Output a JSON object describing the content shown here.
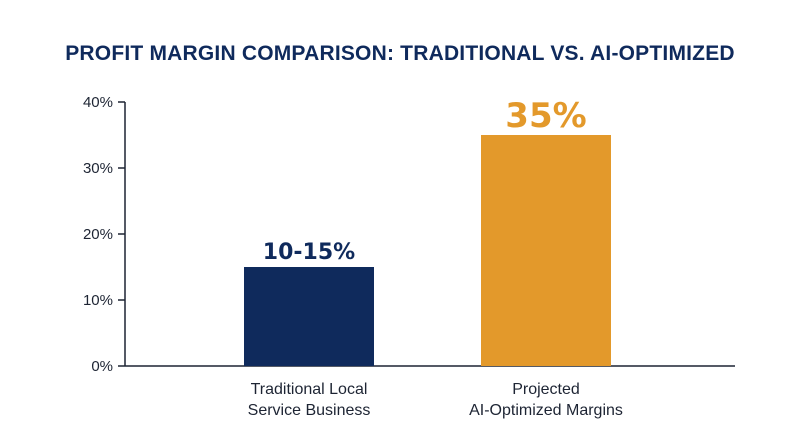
{
  "chart_data": {
    "type": "bar",
    "title": "PROFIT MARGIN COMPARISON: TRADITIONAL VS. AI-OPTIMIZED",
    "xlabel": "",
    "ylabel": "",
    "ylim": [
      0,
      40
    ],
    "yticks": [
      0,
      10,
      20,
      30,
      40
    ],
    "ytick_labels": [
      "0%",
      "10%",
      "20%",
      "30%",
      "40%"
    ],
    "grid": false,
    "categories": [
      [
        "Traditional Local",
        "Service Business"
      ],
      [
        "Projected",
        "AI-Optimized Margins"
      ]
    ],
    "values": [
      15,
      35
    ],
    "data_labels": [
      "10-15%",
      "35%"
    ],
    "colors": [
      "#0f2a5c",
      "#e3992b"
    ],
    "title_color": "#0f2a5c"
  }
}
